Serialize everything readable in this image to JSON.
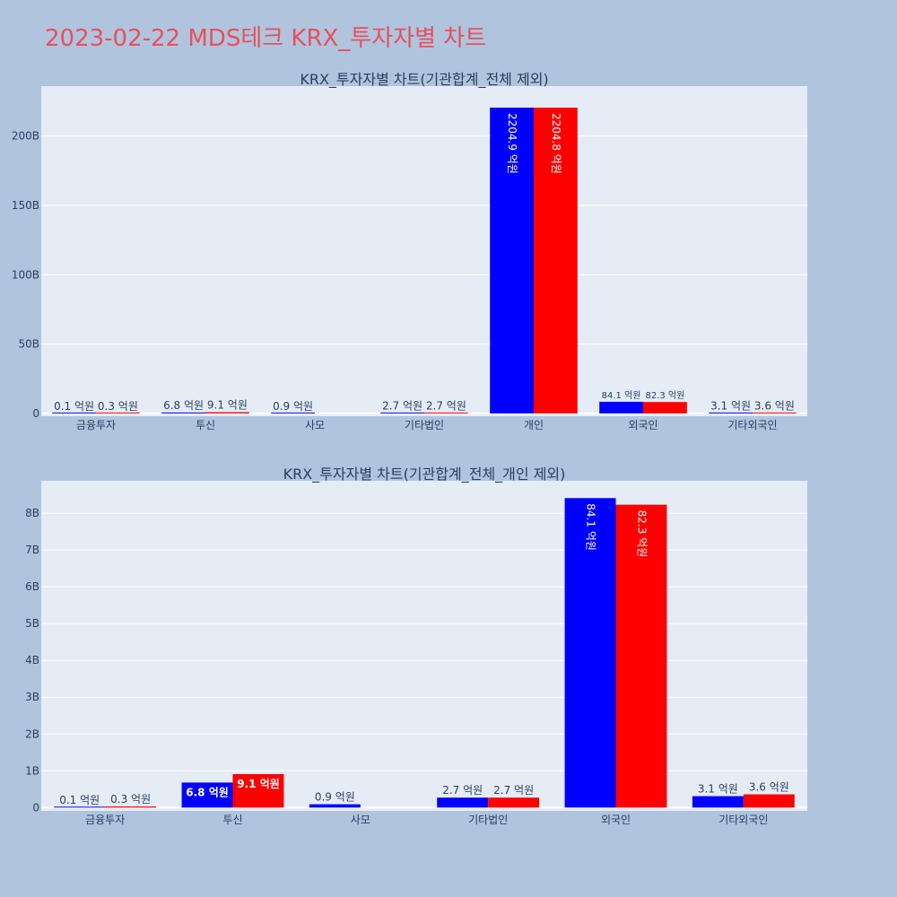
{
  "page": {
    "title": "2023-02-22 MDS테크 KRX_투자자별 차트"
  },
  "colors": {
    "background": "#b0c4de",
    "plot_bg": "#e5ecf6",
    "title": "#e8505b",
    "series_buy": "#0000ff",
    "series_sell": "#ff0000"
  },
  "chart_data": [
    {
      "type": "bar",
      "title": "KRX_투자자별 차트(기관합계_전체 제외)",
      "categories": [
        "금융투자",
        "투신",
        "사모",
        "기타법인",
        "개인",
        "외국인",
        "기타외국인"
      ],
      "series": [
        {
          "color": "#0000ff",
          "values": [
            0.01,
            0.68,
            0.09,
            0.27,
            220.49,
            8.41,
            0.31
          ],
          "labels": [
            "0.1 억원",
            "6.8 억원",
            "0.9 억원",
            "2.7 억원",
            "2204.9 억원",
            "84.1 억원",
            "3.1 억원"
          ]
        },
        {
          "color": "#ff0000",
          "values": [
            0.03,
            0.91,
            null,
            0.27,
            220.48,
            8.23,
            0.36
          ],
          "labels": [
            "0.3 억원",
            "9.1 억원",
            "",
            "2.7 억원",
            "2204.8 억원",
            "82.3 억원",
            "3.6 억원"
          ]
        }
      ],
      "yunit": "B",
      "ylim": [
        -2,
        236
      ],
      "yticks": [
        0,
        50,
        100,
        150,
        200
      ],
      "ytick_labels": [
        "0",
        "50B",
        "100B",
        "150B",
        "200B"
      ],
      "grid": true,
      "xlabel": "",
      "ylabel": ""
    },
    {
      "type": "bar",
      "title": "KRX_투자자별 차트(기관합계_전체_개인 제외)",
      "categories": [
        "금융투자",
        "투신",
        "사모",
        "기타법인",
        "외국인",
        "기타외국인"
      ],
      "series": [
        {
          "color": "#0000ff",
          "values": [
            0.01,
            0.68,
            0.09,
            0.27,
            8.41,
            0.31
          ],
          "labels": [
            "0.1 억원",
            "6.8 억원",
            "0.9 억원",
            "2.7 억원",
            "84.1 억원",
            "3.1 억원"
          ]
        },
        {
          "color": "#ff0000",
          "values": [
            0.03,
            0.91,
            null,
            0.27,
            8.23,
            0.36
          ],
          "labels": [
            "0.3 억원",
            "9.1 억원",
            "",
            "2.7 억원",
            "82.3 억원",
            "3.6 억원"
          ]
        }
      ],
      "yunit": "B",
      "ylim": [
        -0.09,
        8.88
      ],
      "yticks": [
        0,
        1,
        2,
        3,
        4,
        5,
        6,
        7,
        8
      ],
      "ytick_labels": [
        "0",
        "1B",
        "2B",
        "3B",
        "4B",
        "5B",
        "6B",
        "7B",
        "8B"
      ],
      "grid": true,
      "xlabel": "",
      "ylabel": ""
    }
  ]
}
